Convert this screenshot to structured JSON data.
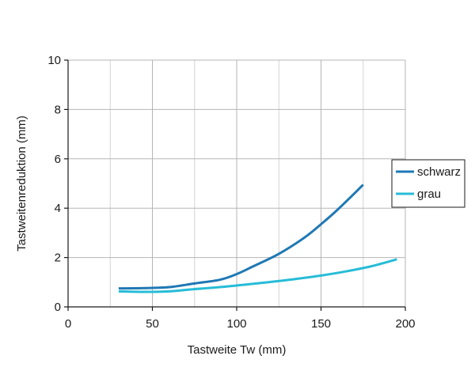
{
  "chart_data": {
    "type": "line",
    "xlabel": "Tastweite Tw (mm)",
    "ylabel": "Tastweitenreduktion (mm)",
    "xlim": [
      0,
      200
    ],
    "ylim": [
      0,
      10
    ],
    "xticks": [
      0,
      50,
      100,
      150,
      200
    ],
    "xtick_labels": [
      "0",
      "50",
      "100",
      "150",
      "200"
    ],
    "yticks": [
      0,
      2,
      4,
      6,
      8,
      10
    ],
    "ytick_labels": [
      "0",
      "2",
      "4",
      "6",
      "8",
      "10"
    ],
    "grid": true,
    "legend_position": "right",
    "series": [
      {
        "name": "schwarz",
        "color": "#1f78b4",
        "x": [
          30,
          45,
          60,
          75,
          90,
          100,
          110,
          125,
          140,
          150,
          160,
          175
        ],
        "y": [
          0.75,
          0.76,
          0.8,
          0.95,
          1.1,
          1.33,
          1.65,
          2.15,
          2.8,
          3.35,
          3.95,
          4.95
        ]
      },
      {
        "name": "grau",
        "color": "#26bcd7",
        "x": [
          30,
          45,
          60,
          75,
          90,
          105,
          120,
          135,
          150,
          165,
          180,
          195
        ],
        "y": [
          0.63,
          0.61,
          0.63,
          0.72,
          0.8,
          0.9,
          1.01,
          1.13,
          1.27,
          1.44,
          1.65,
          1.93
        ]
      }
    ]
  }
}
